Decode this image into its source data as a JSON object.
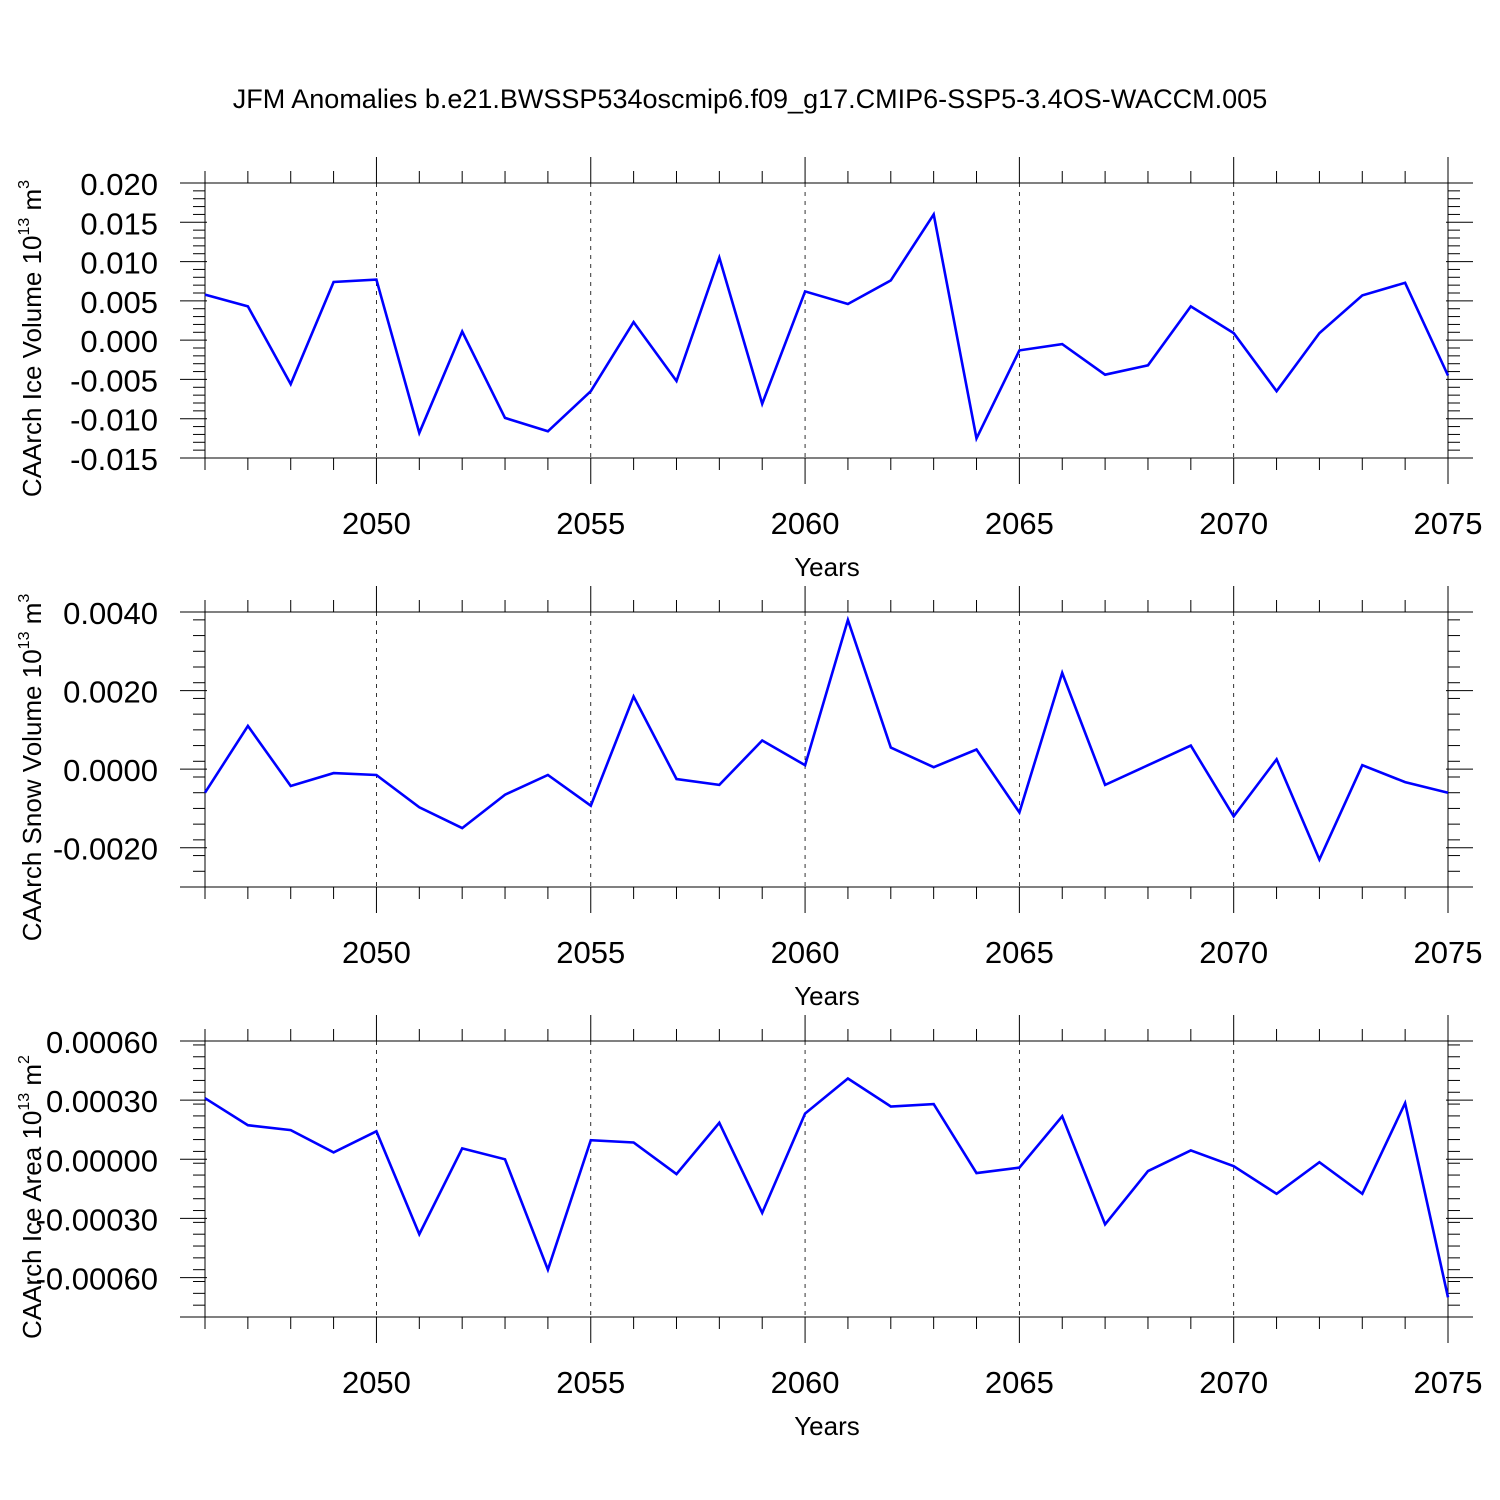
{
  "title": "JFM Anomalies b.e21.BWSSP534oscmip6.f09_g17.CMIP6-SSP5-3.4OS-WACCM.005",
  "chart_data": [
    {
      "type": "line",
      "xlabel": "Years",
      "ylabel": "CAArch Ice Volume 10",
      "ylabel_exp": "13",
      "ylabel_unit": "m",
      "ylabel_unit_exp": "3",
      "xlim": [
        2046,
        2075
      ],
      "ylim": [
        -0.015,
        0.02
      ],
      "yticks": [
        -0.015,
        -0.01,
        -0.005,
        0.0,
        0.005,
        0.01,
        0.015,
        0.02
      ],
      "ytick_labels": [
        "-0.015",
        "-0.010",
        "-0.005",
        "0.000",
        "0.005",
        "0.010",
        "0.015",
        "0.020"
      ],
      "xticks": [
        2050,
        2055,
        2060,
        2065,
        2070,
        2075
      ],
      "xtick_labels": [
        "2050",
        "2055",
        "2060",
        "2065",
        "2070",
        "2075"
      ],
      "grid": "vertical dashed at major x ticks",
      "color": "#0000ff",
      "x": [
        2046,
        2047,
        2048,
        2049,
        2050,
        2051,
        2052,
        2053,
        2054,
        2055,
        2056,
        2057,
        2058,
        2059,
        2060,
        2061,
        2062,
        2063,
        2064,
        2065,
        2066,
        2067,
        2068,
        2069,
        2070,
        2071,
        2072,
        2073,
        2074,
        2075
      ],
      "values": [
        0.0058,
        0.0043,
        -0.0056,
        0.0074,
        0.0077,
        -0.0118,
        0.0011,
        -0.0099,
        -0.0116,
        -0.0065,
        0.0023,
        -0.0052,
        0.0105,
        -0.0081,
        0.0062,
        0.0046,
        0.0076,
        0.016,
        -0.0125,
        -0.0013,
        -0.0005,
        -0.0044,
        -0.0032,
        0.0043,
        0.0009,
        -0.0065,
        0.0009,
        0.0057,
        0.0073,
        -0.0045
      ]
    },
    {
      "type": "line",
      "xlabel": "Years",
      "ylabel": "CAArch Snow Volume 10",
      "ylabel_exp": "13",
      "ylabel_unit": "m",
      "ylabel_unit_exp": "3",
      "xlim": [
        2046,
        2075
      ],
      "ylim": [
        -0.003,
        0.004
      ],
      "yticks": [
        -0.002,
        0.0,
        0.002,
        0.004
      ],
      "ytick_labels": [
        "-0.0020",
        "0.0000",
        "0.0020",
        "0.0040"
      ],
      "xticks": [
        2050,
        2055,
        2060,
        2065,
        2070,
        2075
      ],
      "xtick_labels": [
        "2050",
        "2055",
        "2060",
        "2065",
        "2070",
        "2075"
      ],
      "grid": "vertical dashed at major x ticks",
      "color": "#0000ff",
      "x": [
        2046,
        2047,
        2048,
        2049,
        2050,
        2051,
        2052,
        2053,
        2054,
        2055,
        2056,
        2057,
        2058,
        2059,
        2060,
        2061,
        2062,
        2063,
        2064,
        2065,
        2066,
        2067,
        2068,
        2069,
        2070,
        2071,
        2072,
        2073,
        2074,
        2075
      ],
      "values": [
        -0.0006,
        0.0011,
        -0.00043,
        -0.0001,
        -0.00015,
        -0.00097,
        -0.0015,
        -0.00065,
        -0.00015,
        -0.00093,
        0.00185,
        -0.00025,
        -0.0004,
        0.00073,
        0.0001,
        0.0038,
        0.00055,
        5e-05,
        0.0005,
        -0.0011,
        0.00245,
        -0.0004,
        0.0001,
        0.0006,
        -0.0012,
        0.00025,
        -0.0023,
        0.0001,
        -0.00033,
        -0.0006
      ]
    },
    {
      "type": "line",
      "xlabel": "Years",
      "ylabel": "CAArch Ice Area 10",
      "ylabel_exp": "13",
      "ylabel_unit": "m",
      "ylabel_unit_exp": "2",
      "xlim": [
        2046,
        2075
      ],
      "ylim": [
        -0.0008,
        0.0006
      ],
      "yticks": [
        -0.0006,
        -0.0003,
        0.0,
        0.0003,
        0.0006
      ],
      "ytick_labels": [
        "-0.00060",
        "-0.00030",
        "0.00000",
        "0.00030",
        "0.00060"
      ],
      "xticks": [
        2050,
        2055,
        2060,
        2065,
        2070,
        2075
      ],
      "xtick_labels": [
        "2050",
        "2055",
        "2060",
        "2065",
        "2070",
        "2075"
      ],
      "grid": "vertical dashed at major x ticks",
      "color": "#0000ff",
      "x": [
        2046,
        2047,
        2048,
        2049,
        2050,
        2051,
        2052,
        2053,
        2054,
        2055,
        2056,
        2057,
        2058,
        2059,
        2060,
        2061,
        2062,
        2063,
        2064,
        2065,
        2066,
        2067,
        2068,
        2069,
        2070,
        2071,
        2072,
        2073,
        2074,
        2075
      ],
      "values": [
        0.00031,
        0.000173,
        0.000148,
        3.5e-05,
        0.000142,
        -0.00038,
        5.5e-05,
        0.0,
        -0.00056,
        9.7e-05,
        8.5e-05,
        -7.5e-05,
        0.000185,
        -0.000272,
        0.000232,
        0.00041,
        0.000268,
        0.00028,
        -7e-05,
        -4.2e-05,
        0.000218,
        -0.00033,
        -6e-05,
        4.5e-05,
        -3.5e-05,
        -0.000175,
        -1.5e-05,
        -0.000175,
        0.000285,
        -0.0007
      ]
    }
  ]
}
